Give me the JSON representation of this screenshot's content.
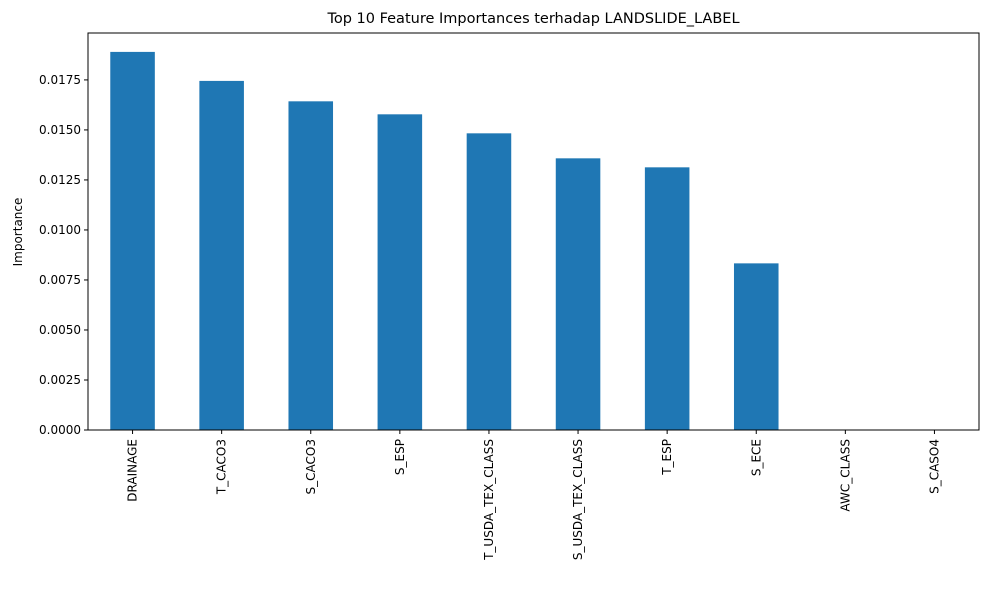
{
  "chart_data": {
    "type": "bar",
    "title": "Top 10 Feature Importances terhadap LANDSLIDE_LABEL",
    "xlabel": "",
    "ylabel": "Importance",
    "categories": [
      "DRAINAGE",
      "T_CACO3",
      "S_CACO3",
      "S_ESP",
      "T_USDA_TEX_CLASS",
      "S_USDA_TEX_CLASS",
      "T_ESP",
      "S_ECE",
      "AWC_CLASS",
      "S_CASO4"
    ],
    "values": [
      0.0189,
      0.01745,
      0.01643,
      0.01578,
      0.01483,
      0.01358,
      0.01313,
      0.00833,
      0.0,
      0.0
    ],
    "ylim": [
      0,
      0.019845
    ],
    "yticks": [
      "0.0000",
      "0.0025",
      "0.0050",
      "0.0075",
      "0.0100",
      "0.0125",
      "0.0150",
      "0.0175"
    ],
    "ytick_values": [
      0,
      0.0025,
      0.005,
      0.0075,
      0.01,
      0.0125,
      0.015,
      0.0175
    ],
    "bar_color": "#1f77b4",
    "grid": false,
    "legend": "none"
  }
}
